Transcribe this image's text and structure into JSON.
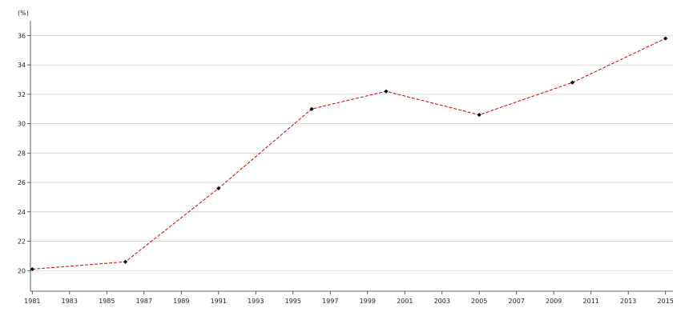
{
  "chart_data": {
    "type": "line",
    "title": "",
    "xlabel": "",
    "ylabel": "(%)",
    "x": [
      1981,
      1986,
      1991,
      1996,
      2000,
      2005,
      2010,
      2015
    ],
    "series": [
      {
        "values": [
          20.1,
          20.6,
          25.6,
          31.0,
          32.2,
          30.6,
          32.8,
          35.8
        ]
      }
    ],
    "xlim": [
      1980.9,
      2015.4
    ],
    "ylim": [
      18.6,
      37.0
    ],
    "x_ticks": [
      "1981",
      "1983",
      "1985",
      "1987",
      "1989",
      "1991",
      "1993",
      "1995",
      "1997",
      "1999",
      "2001",
      "2003",
      "2005",
      "2007",
      "2009",
      "2011",
      "2013",
      "2015"
    ],
    "y_ticks": [
      "20",
      "22",
      "24",
      "26",
      "28",
      "30",
      "32",
      "34",
      "36"
    ],
    "grid": "horizontal",
    "line_style": "dashed",
    "colors": {
      "line": "#cc0000",
      "marker": "#000000",
      "grid": "#d0d0d0",
      "axis": "#333333"
    }
  }
}
